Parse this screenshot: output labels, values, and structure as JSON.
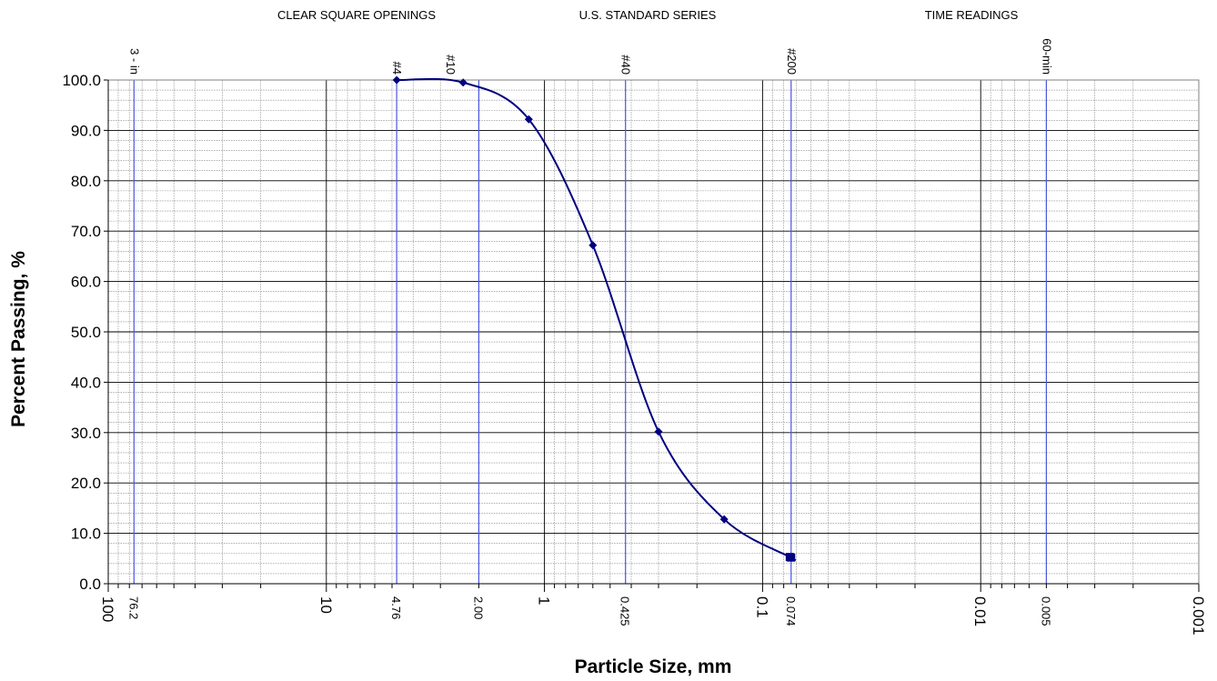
{
  "chart_data": {
    "type": "line",
    "xlabel": "Particle Size, mm",
    "ylabel": "Percent Passing, %",
    "x_scale": "log",
    "x_reversed": true,
    "xlim": [
      100,
      0.001
    ],
    "ylim": [
      0,
      100
    ],
    "grid": true,
    "header_labels": [
      "CLEAR SQUARE OPENINGS",
      "U.S. STANDARD SERIES",
      "TIME READINGS"
    ],
    "y_ticks": [
      "0.0",
      "10.0",
      "20.0",
      "30.0",
      "40.0",
      "50.0",
      "60.0",
      "70.0",
      "80.0",
      "90.0",
      "100.0"
    ],
    "x_major_ticks": [
      {
        "value": 100,
        "label": "100"
      },
      {
        "value": 10,
        "label": "10"
      },
      {
        "value": 1,
        "label": "1"
      },
      {
        "value": 0.1,
        "label": "0.1"
      },
      {
        "value": 0.01,
        "label": "0.01"
      },
      {
        "value": 0.001,
        "label": "0.001"
      }
    ],
    "reference_lines": [
      {
        "value": 76.2,
        "size_label": "76.2",
        "sieve_label": "3 - in"
      },
      {
        "value": 4.76,
        "size_label": "4.76",
        "sieve_label": "#4"
      },
      {
        "value": 2.0,
        "size_label": "2.00",
        "sieve_label": ""
      },
      {
        "value": 0.425,
        "size_label": "0.425",
        "sieve_label": "#40"
      },
      {
        "value": 0.074,
        "size_label": "0.074",
        "sieve_label": "#200"
      },
      {
        "value": 0.005,
        "size_label": "0.005",
        "sieve_label": "60-min"
      }
    ],
    "extra_sieve_labels": [
      {
        "value": 2.7,
        "label": "#10"
      }
    ],
    "series": [
      {
        "x": [
          4.76,
          2.36,
          1.18,
          0.6,
          0.3,
          0.15,
          0.075,
          0.074
        ],
        "y": [
          100.0,
          99.5,
          92.2,
          67.2,
          30.2,
          12.8,
          5.3,
          5.2
        ]
      }
    ],
    "colors": {
      "series": "#000080",
      "reference_line": "#4a56e0",
      "major_grid": "#000000",
      "minor_grid": "#808080"
    }
  }
}
